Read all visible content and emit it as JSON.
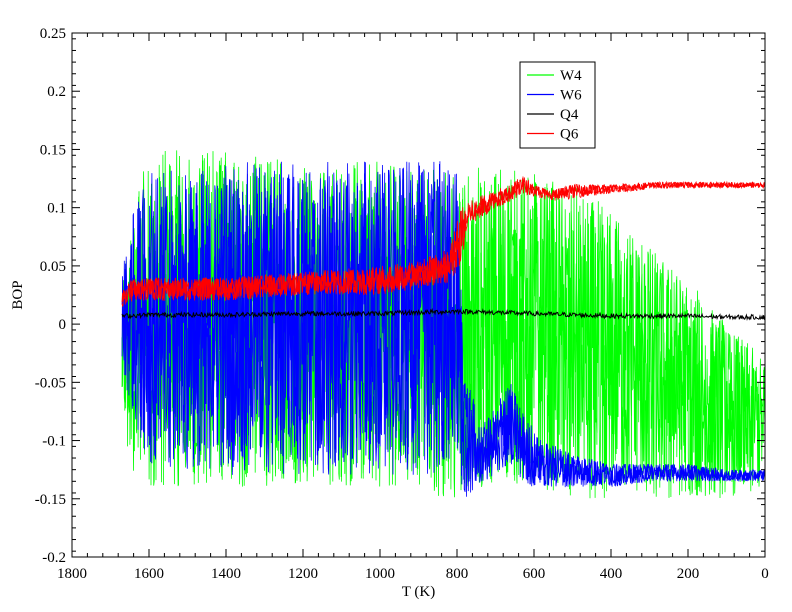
{
  "chart_data": {
    "type": "line",
    "xlabel": "T (K)",
    "ylabel": "BOP",
    "xlim": [
      1800,
      0
    ],
    "ylim": [
      -0.2,
      0.25
    ],
    "x_reversed": true,
    "x_ticks": [
      1800,
      1600,
      1400,
      1200,
      1000,
      800,
      600,
      400,
      200,
      0
    ],
    "y_ticks": [
      -0.2,
      -0.15,
      -0.1,
      -0.05,
      0,
      0.05,
      0.1,
      0.15,
      0.2,
      0.25
    ],
    "x_tick_labels": [
      "1800",
      "1600",
      "1400",
      "1200",
      "1000",
      "800",
      "600",
      "400",
      "200",
      "0"
    ],
    "y_tick_labels": [
      "-0.2",
      "-0.15",
      "-0.1",
      "-0.05",
      "0",
      "0.05",
      "0.1",
      "0.15",
      "0.2",
      "0.25"
    ],
    "legend": {
      "placement": "top-right"
    },
    "series": [
      {
        "name": "W4",
        "color": "#00ff00",
        "band": {
          "x": [
            1670,
            1640,
            1600,
            1400,
            1200,
            1000,
            800,
            780,
            700,
            600,
            500,
            400,
            300,
            200,
            100,
            0
          ],
          "upper": [
            0.03,
            0.1,
            0.15,
            0.15,
            0.14,
            0.14,
            0.13,
            0.13,
            0.14,
            0.13,
            0.12,
            0.1,
            0.07,
            0.04,
            0.0,
            -0.03
          ],
          "lower": [
            -0.09,
            -0.13,
            -0.14,
            -0.14,
            -0.14,
            -0.14,
            -0.15,
            -0.14,
            -0.14,
            -0.14,
            -0.15,
            -0.15,
            -0.15,
            -0.15,
            -0.15,
            -0.14
          ]
        }
      },
      {
        "name": "W6",
        "color": "#0000ff",
        "band": {
          "x": [
            1670,
            1640,
            1600,
            1400,
            1200,
            1000,
            800,
            780,
            740,
            700,
            660,
            620,
            580,
            500,
            400,
            300,
            200,
            100,
            0
          ],
          "upper": [
            0.05,
            0.1,
            0.13,
            0.14,
            0.14,
            0.14,
            0.14,
            -0.03,
            -0.09,
            -0.07,
            -0.05,
            -0.08,
            -0.1,
            -0.11,
            -0.12,
            -0.12,
            -0.12,
            -0.125,
            -0.125
          ],
          "lower": [
            -0.04,
            -0.08,
            -0.12,
            -0.13,
            -0.13,
            -0.13,
            -0.13,
            -0.15,
            -0.14,
            -0.13,
            -0.12,
            -0.14,
            -0.14,
            -0.14,
            -0.14,
            -0.135,
            -0.135,
            -0.135,
            -0.135
          ]
        }
      },
      {
        "name": "Q4",
        "color": "#000000",
        "x": [
          1670,
          1600,
          1400,
          1200,
          1000,
          900,
          800,
          700,
          600,
          500,
          400,
          300,
          200,
          100,
          0
        ],
        "y": [
          0.007,
          0.008,
          0.008,
          0.009,
          0.009,
          0.01,
          0.011,
          0.01,
          0.009,
          0.008,
          0.007,
          0.007,
          0.007,
          0.006,
          0.006
        ]
      },
      {
        "name": "Q6",
        "color": "#ff0000",
        "band": {
          "x": [
            1670,
            1640,
            1600,
            1400,
            1200,
            1000,
            900,
            820,
            790,
            770,
            740,
            700,
            660,
            630,
            600,
            560,
            500,
            450,
            400,
            300,
            200,
            100,
            0
          ],
          "upper": [
            0.03,
            0.04,
            0.04,
            0.04,
            0.045,
            0.05,
            0.055,
            0.065,
            0.1,
            0.105,
            0.11,
            0.115,
            0.12,
            0.128,
            0.12,
            0.115,
            0.12,
            0.12,
            0.12,
            0.122,
            0.122,
            0.122,
            0.122
          ],
          "lower": [
            0.015,
            0.02,
            0.02,
            0.02,
            0.025,
            0.025,
            0.03,
            0.035,
            0.05,
            0.085,
            0.09,
            0.1,
            0.105,
            0.112,
            0.11,
            0.105,
            0.108,
            0.11,
            0.112,
            0.116,
            0.117,
            0.117,
            0.117
          ]
        }
      }
    ]
  }
}
